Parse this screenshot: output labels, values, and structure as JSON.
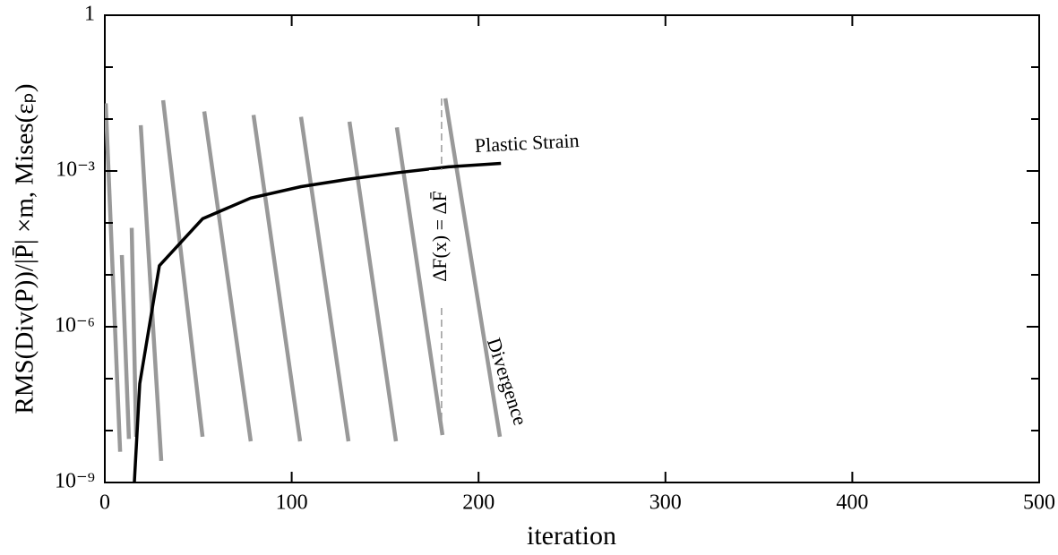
{
  "chart_data": {
    "type": "line",
    "xlabel": "iteration",
    "ylabel": "RMS(Div(P))/|P̄| ×m,  Mises(εₚ)",
    "xlim": [
      0,
      500
    ],
    "xticks": [
      0,
      100,
      200,
      300,
      400,
      500
    ],
    "ylim": [
      1e-09,
      1
    ],
    "ylog": true,
    "yticks": [
      {
        "value": 1e-09,
        "label": "10⁻⁹"
      },
      {
        "value": 1e-06,
        "label": "10⁻⁶"
      },
      {
        "value": 0.001,
        "label": "10⁻³"
      },
      1
    ],
    "yminorticks": [
      1e-08,
      1e-07,
      1e-05,
      0.0001,
      0.01,
      0.1
    ],
    "series": [
      {
        "name": "Plastic Strain",
        "color": "#000000",
        "x": [
          15,
          18.7,
          29.2,
          52.3,
          78,
          105,
          131,
          157,
          184,
          212
        ],
        "values": [
          3e-10,
          8e-08,
          1.5e-05,
          0.00012,
          0.0003,
          0.0005,
          0.0007,
          0.00093,
          0.0012,
          0.0014
        ]
      },
      {
        "name": "Divergence",
        "color": "#999999",
        "x": [
          0.5,
          8.2,
          null,
          9.1,
          12.9,
          null,
          14.4,
          16.8,
          null,
          19.2,
          30.2,
          null,
          31.2,
          52.3,
          null,
          53.2,
          78.1,
          null,
          79.6,
          104.5,
          null,
          105,
          130.4,
          null,
          130.9,
          155.8,
          null,
          156.3,
          180.7,
          null,
          182.2,
          211.4
        ],
        "values": [
          0.02,
          3.9e-09,
          null,
          2.4e-05,
          6.9e-09,
          null,
          8e-05,
          7.6e-09,
          null,
          0.0076,
          2.6e-09,
          null,
          0.023,
          7.6e-09,
          null,
          0.014,
          6.2e-09,
          null,
          0.012,
          6.2e-09,
          null,
          0.011,
          6.2e-09,
          null,
          0.0089,
          6.2e-09,
          null,
          0.0069,
          8.2e-09,
          null,
          0.025,
          7.6e-09
        ]
      }
    ],
    "annotation": {
      "text": "ΔF(x) = ΔF̄",
      "x": 180.2
    }
  }
}
